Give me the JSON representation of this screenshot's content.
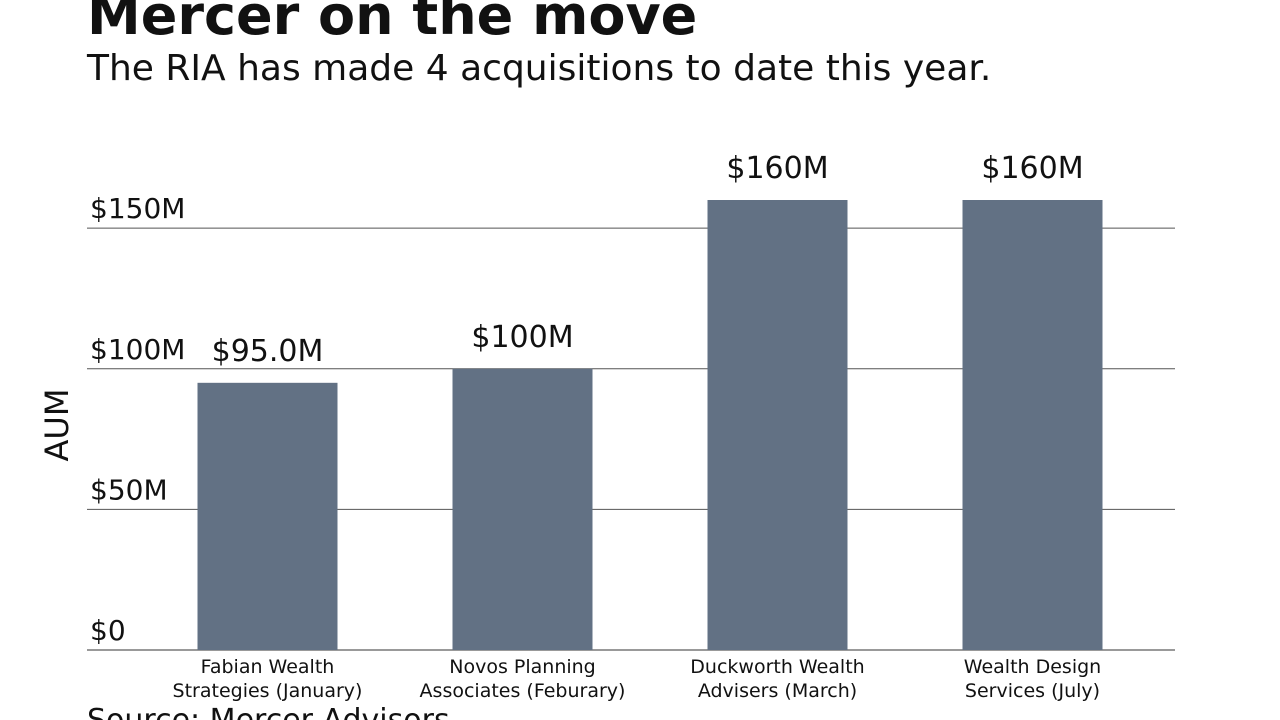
{
  "chart_data": {
    "type": "bar",
    "title": "Mercer on the move",
    "subtitle": "The RIA has made 4 acquisitions to date this year.",
    "y_label": "AUM",
    "source": "Source: Mercer Advisors",
    "categories": [
      "Fabian Wealth\nStrategies (January)",
      "Novos Planning\nAssociates (Feburary)",
      "Duckworth Wealth\nAdvisers (March)",
      "Wealth Design\nServices (July)"
    ],
    "values": [
      95,
      100,
      160,
      160
    ],
    "value_labels": [
      "$95.0M",
      "$100M",
      "$160M",
      "$160M"
    ],
    "color": "#627184",
    "ylim": [
      0,
      160
    ],
    "yticks": [
      {
        "value": 0,
        "label": "$0"
      },
      {
        "value": 50,
        "label": "$50M"
      },
      {
        "value": 100,
        "label": "$100M"
      },
      {
        "value": 150,
        "label": "$150M"
      }
    ],
    "grid": true
  }
}
